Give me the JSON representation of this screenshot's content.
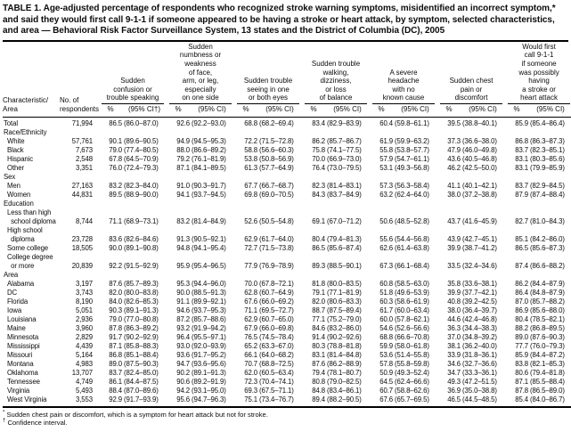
{
  "title": "TABLE 1. Age-adjusted percentage of respondents who recognized stroke warning symptoms, misidentified an incorrect symptom,* and said they would first call 9-1-1 if someone appeared to be having a stroke or heart attack, by symptom, selected characteristics, and area — Behavioral Risk Factor Surveillance System, 13 states and the District of Columbia (DC), 2005",
  "table": {
    "col_headers": {
      "characteristic": "Characteristic/\nArea",
      "respondents": "No. of\nrespondents"
    },
    "groups": [
      {
        "label": "Sudden\nconfusion or\ntrouble speaking",
        "pct": "%",
        "ci": "(95% CI†)"
      },
      {
        "label": "Sudden\nnumbness or\nweakness\nof face,\narm, or leg,\nespecially\non one side",
        "pct": "%",
        "ci": "(95% CI)"
      },
      {
        "label": "Sudden trouble\nseeing in one\nor both eyes",
        "pct": "%",
        "ci": "(95% CI)"
      },
      {
        "label": "Sudden trouble\nwalking,\ndizziness,\nor loss\nof balance",
        "pct": "%",
        "ci": "(95% CI)"
      },
      {
        "label": "A severe\nheadache\nwith no\nknown cause",
        "pct": "%",
        "ci": "(95% CI)"
      },
      {
        "label": "Sudden chest\npain or\ndiscomfort",
        "pct": "%",
        "ci": "(95% CI)"
      },
      {
        "label": "Would first\ncall 9-1-1\nif someone\nwas possibly\nhaving\na stroke or\nheart attack",
        "pct": "%",
        "ci": "(95% CI)"
      }
    ],
    "rows": [
      {
        "label": "Total",
        "flush": true,
        "n": "71,994",
        "values": [
          [
            "86.5",
            "(86.0–87.0)"
          ],
          [
            "92.6",
            "(92.2–93.0)"
          ],
          [
            "68.8",
            "(68.2–69.4)"
          ],
          [
            "83.4",
            "(82.9–83.9)"
          ],
          [
            "60.4",
            "(59.8–61.1)"
          ],
          [
            "39.5",
            "(38.8–40.1)"
          ],
          [
            "85.9",
            "(85.4–86.4)"
          ]
        ]
      },
      {
        "section": true,
        "label": "Race/Ethnicity"
      },
      {
        "label": "White",
        "n": "57,761",
        "values": [
          [
            "90.1",
            "(89.6–90.5)"
          ],
          [
            "94.9",
            "(94.5–95.3)"
          ],
          [
            "72.2",
            "(71.5–72.8)"
          ],
          [
            "86.2",
            "(85.7–86.7)"
          ],
          [
            "61.9",
            "(59.9–63.2)"
          ],
          [
            "37.3",
            "(36.6–38.0)"
          ],
          [
            "86.8",
            "(86.3–87.3)"
          ]
        ]
      },
      {
        "label": "Black",
        "n": "7,673",
        "values": [
          [
            "79.0",
            "(77.4–80.5)"
          ],
          [
            "88.0",
            "(86.6–89.2)"
          ],
          [
            "58.8",
            "(56.6–60.3)"
          ],
          [
            "75.8",
            "(74.1–77.5)"
          ],
          [
            "55.8",
            "(53.8–57.7)"
          ],
          [
            "47.9",
            "(46.0–49.8)"
          ],
          [
            "83.7",
            "(82.3–85.1)"
          ]
        ]
      },
      {
        "label": "Hispanic",
        "n": "2,548",
        "values": [
          [
            "67.8",
            "(64.5–70.9)"
          ],
          [
            "79.2",
            "(76.1–81.9)"
          ],
          [
            "53.8",
            "(50.8–56.9)"
          ],
          [
            "70.0",
            "(66.9–73.0)"
          ],
          [
            "57.9",
            "(54.7–61.1)"
          ],
          [
            "43.6",
            "(40.5–46.8)"
          ],
          [
            "83.1",
            "(80.3–85.6)"
          ]
        ]
      },
      {
        "label": "Other",
        "n": "3,351",
        "values": [
          [
            "76.0",
            "(72.4–79.3)"
          ],
          [
            "87.1",
            "(84.1–89.5)"
          ],
          [
            "61.3",
            "(57.7–64.9)"
          ],
          [
            "76.4",
            "(73.0–79.5)"
          ],
          [
            "53.1",
            "(49.3–56.8)"
          ],
          [
            "46.2",
            "(42.5–50.0)"
          ],
          [
            "83.1",
            "(79.9–85.9)"
          ]
        ]
      },
      {
        "section": true,
        "label": "Sex"
      },
      {
        "label": "Men",
        "n": "27,163",
        "values": [
          [
            "83.2",
            "(82.3–84.0)"
          ],
          [
            "91.0",
            "(90.3–91.7)"
          ],
          [
            "67.7",
            "(66.7–68.7)"
          ],
          [
            "82.3",
            "(81.4–83.1)"
          ],
          [
            "57.3",
            "(56.3–58.4)"
          ],
          [
            "41.1",
            "(40.1–42.1)"
          ],
          [
            "83.7",
            "(82.9–84.5)"
          ]
        ]
      },
      {
        "label": "Women",
        "n": "44,831",
        "values": [
          [
            "89.5",
            "(88.9–90.0)"
          ],
          [
            "94.1",
            "(93.7–94.5)"
          ],
          [
            "69.8",
            "(69.0–70.5)"
          ],
          [
            "84.3",
            "(83.7–84.9)"
          ],
          [
            "63.2",
            "(62.4–64.0)"
          ],
          [
            "38.0",
            "(37.2–38.8)"
          ],
          [
            "87.9",
            "(87.4–88.4)"
          ]
        ]
      },
      {
        "section": true,
        "label": "Education"
      },
      {
        "label": "Less than high\n  school diploma",
        "n": "8,744",
        "values": [
          [
            "71.1",
            "(68.9–73.1)"
          ],
          [
            "83.2",
            "(81.4–84.9)"
          ],
          [
            "52.6",
            "(50.5–54.8)"
          ],
          [
            "69.1",
            "(67.0–71.2)"
          ],
          [
            "50.6",
            "(48.5–52.8)"
          ],
          [
            "43.7",
            "(41.6–45.9)"
          ],
          [
            "82.7",
            "(81.0–84.3)"
          ]
        ]
      },
      {
        "label": "High school\n  diploma",
        "n": "23,728",
        "values": [
          [
            "83.6",
            "(82.6–84.6)"
          ],
          [
            "91.3",
            "(90.5–92.1)"
          ],
          [
            "62.9",
            "(61.7–64.0)"
          ],
          [
            "80.4",
            "(79.4–81.3)"
          ],
          [
            "55.6",
            "(54.4–56.8)"
          ],
          [
            "43.9",
            "(42.7–45.1)"
          ],
          [
            "85.1",
            "(84.2–86.0)"
          ]
        ]
      },
      {
        "label": "Some college",
        "n": "18,505",
        "values": [
          [
            "90.0",
            "(89.1–90.8)"
          ],
          [
            "94.8",
            "(94.1–95.4)"
          ],
          [
            "72.7",
            "(71.5–73.8)"
          ],
          [
            "86.5",
            "(85.6–87.4)"
          ],
          [
            "62.6",
            "(61.4–63.8)"
          ],
          [
            "39.9",
            "(38.7–41.2)"
          ],
          [
            "86.5",
            "(85.6–87.3)"
          ]
        ]
      },
      {
        "label": "College degree\n  or more",
        "n": "20,839",
        "values": [
          [
            "92.2",
            "(91.5–92.9)"
          ],
          [
            "95.9",
            "(95.4–96.5)"
          ],
          [
            "77.9",
            "(76.9–78.9)"
          ],
          [
            "89.3",
            "(88.5–90.1)"
          ],
          [
            "67.3",
            "(66.1–68.4)"
          ],
          [
            "33.5",
            "(32.4–34.6)"
          ],
          [
            "87.4",
            "(86.6–88.2)"
          ]
        ]
      },
      {
        "section": true,
        "label": "Area"
      },
      {
        "label": "Alabama",
        "n": "3,197",
        "values": [
          [
            "87.6",
            "(85.7–89.3)"
          ],
          [
            "95.3",
            "(94.4–96.0)"
          ],
          [
            "70.0",
            "(67.8–72.1)"
          ],
          [
            "81.8",
            "(80.0–83.5)"
          ],
          [
            "60.8",
            "(58.5–63.0)"
          ],
          [
            "35.8",
            "(33.6–38.1)"
          ],
          [
            "86.2",
            "(84.4–87.9)"
          ]
        ]
      },
      {
        "label": "DC",
        "n": "3,743",
        "values": [
          [
            "82.0",
            "(80.0–83.8)"
          ],
          [
            "90.0",
            "(88.5–91.3)"
          ],
          [
            "62.8",
            "(60.7–64.9)"
          ],
          [
            "79.1",
            "(77.1–81.9)"
          ],
          [
            "51.8",
            "(49.6–53.9)"
          ],
          [
            "39.9",
            "(37.7–42.1)"
          ],
          [
            "86.4",
            "(84.8–87.9)"
          ]
        ]
      },
      {
        "label": "Florida",
        "n": "8,190",
        "values": [
          [
            "84.0",
            "(82.6–85.3)"
          ],
          [
            "91.1",
            "(89.9–92.1)"
          ],
          [
            "67.6",
            "(66.0–69.2)"
          ],
          [
            "82.0",
            "(80.6–83.3)"
          ],
          [
            "60.3",
            "(58.6–61.9)"
          ],
          [
            "40.8",
            "(39.2–42.5)"
          ],
          [
            "87.0",
            "(85.7–88.2)"
          ]
        ]
      },
      {
        "label": "Iowa",
        "n": "5,051",
        "values": [
          [
            "90.3",
            "(89.1–91.3)"
          ],
          [
            "94.6",
            "(93.7–95.3)"
          ],
          [
            "71.1",
            "(69.5–72.7)"
          ],
          [
            "88.7",
            "(87.5–89.4)"
          ],
          [
            "61.7",
            "(60.0–63.4)"
          ],
          [
            "38.0",
            "(36.4–39.7)"
          ],
          [
            "86.9",
            "(85.6–88.0)"
          ]
        ]
      },
      {
        "label": "Louisiana",
        "n": "2,936",
        "values": [
          [
            "79.0",
            "(77.0–80.8)"
          ],
          [
            "87.2",
            "(85.7–88.6)"
          ],
          [
            "62.9",
            "(60.7–65.0)"
          ],
          [
            "77.1",
            "(75.2–79.0)"
          ],
          [
            "60.0",
            "(57.8–62.1)"
          ],
          [
            "44.6",
            "(42.4–46.8)"
          ],
          [
            "80.4",
            "(78.5–82.1)"
          ]
        ]
      },
      {
        "label": "Maine",
        "n": "3,960",
        "values": [
          [
            "87.8",
            "(86.3–89.2)"
          ],
          [
            "93.2",
            "(91.9–94.2)"
          ],
          [
            "67.9",
            "(66.0–69.8)"
          ],
          [
            "84.6",
            "(83.2–86.0)"
          ],
          [
            "54.6",
            "(52.6–56.6)"
          ],
          [
            "36.3",
            "(34.4–38.3)"
          ],
          [
            "88.2",
            "(86.8–89.5)"
          ]
        ]
      },
      {
        "label": "Minnesota",
        "n": "2,829",
        "values": [
          [
            "91.7",
            "(90.2–92.9)"
          ],
          [
            "96.4",
            "(95.5–97.1)"
          ],
          [
            "76.5",
            "(74.5–78.4)"
          ],
          [
            "91.4",
            "(90.2–92.6)"
          ],
          [
            "68.8",
            "(66.6–70.8)"
          ],
          [
            "37.0",
            "(34.8–39.2)"
          ],
          [
            "89.0",
            "(87.6–90.3)"
          ]
        ]
      },
      {
        "label": "Mississippi",
        "n": "4,439",
        "values": [
          [
            "87.1",
            "(85.8–88.3)"
          ],
          [
            "93.0",
            "(92.0–93.9)"
          ],
          [
            "65.2",
            "(63.3–67.0)"
          ],
          [
            "80.3",
            "(78.8–81.8)"
          ],
          [
            "59.9",
            "(58.0–61.8)"
          ],
          [
            "38.1",
            "(36.2–40.0)"
          ],
          [
            "77.7",
            "(76.0–79.3)"
          ]
        ]
      },
      {
        "label": "Missouri",
        "n": "5,164",
        "values": [
          [
            "86.8",
            "(85.1–88.4)"
          ],
          [
            "93.6",
            "(91.7–95.2)"
          ],
          [
            "66.1",
            "(64.0–68.2)"
          ],
          [
            "83.1",
            "(81.4–84.8)"
          ],
          [
            "53.6",
            "(51.4–55.8)"
          ],
          [
            "33.9",
            "(31.8–36.1)"
          ],
          [
            "85.9",
            "(84.4–87.2)"
          ]
        ]
      },
      {
        "label": "Montana",
        "n": "4,983",
        "values": [
          [
            "89.0",
            "(87.5–90.3)"
          ],
          [
            "94.7",
            "(93.6–95.6)"
          ],
          [
            "70.7",
            "(68.8–72.5)"
          ],
          [
            "87.6",
            "(86.2–88.9)"
          ],
          [
            "57.8",
            "(55.8–59.8)"
          ],
          [
            "34.6",
            "(32.7–36.6)"
          ],
          [
            "83.8",
            "(82.1–85.3)"
          ]
        ]
      },
      {
        "label": "Oklahoma",
        "n": "13,707",
        "values": [
          [
            "83.7",
            "(82.4–85.0)"
          ],
          [
            "90.2",
            "(89.1–91.3)"
          ],
          [
            "62.0",
            "(60.5–63.4)"
          ],
          [
            "79.4",
            "(78.1–80.7)"
          ],
          [
            "50.9",
            "(49.3–52.4)"
          ],
          [
            "34.7",
            "(33.3–36.1)"
          ],
          [
            "80.6",
            "(79.4–81.8)"
          ]
        ]
      },
      {
        "label": "Tennessee",
        "n": "4,749",
        "values": [
          [
            "86.1",
            "(84.4–87.5)"
          ],
          [
            "90.6",
            "(89.2–91.9)"
          ],
          [
            "72.3",
            "(70.4–74.1)"
          ],
          [
            "80.8",
            "(79.0–82.5)"
          ],
          [
            "64.5",
            "(62.4–66.6)"
          ],
          [
            "49.3",
            "(47.2–51.5)"
          ],
          [
            "87.1",
            "(85.5–88.4)"
          ]
        ]
      },
      {
        "label": "Virginia",
        "n": "5,493",
        "values": [
          [
            "88.4",
            "(87.0–89.6)"
          ],
          [
            "94.2",
            "(93.1–95.0)"
          ],
          [
            "69.3",
            "(67.5–71.1)"
          ],
          [
            "84.8",
            "(83.4–86.1)"
          ],
          [
            "60.7",
            "(58.8–62.6)"
          ],
          [
            "36.9",
            "(35.0–38.8)"
          ],
          [
            "87.8",
            "(86.5–89.0)"
          ]
        ]
      },
      {
        "label": "West Virginia",
        "n": "3,553",
        "values": [
          [
            "92.9",
            "(91.7–93.9)"
          ],
          [
            "95.6",
            "(94.7–96.3)"
          ],
          [
            "75.1",
            "(73.4–76.7)"
          ],
          [
            "89.4",
            "(88.2–90.5)"
          ],
          [
            "67.6",
            "(65.7–69.5)"
          ],
          [
            "46.5",
            "(44.5–48.5)"
          ],
          [
            "85.4",
            "(84.0–86.7)"
          ]
        ]
      }
    ]
  },
  "footnotes": [
    {
      "marker": "*",
      "text": "Sudden chest pain or discomfort, which is a symptom for heart attack but not for stroke."
    },
    {
      "marker": "†",
      "text": "Confidence interval."
    }
  ]
}
